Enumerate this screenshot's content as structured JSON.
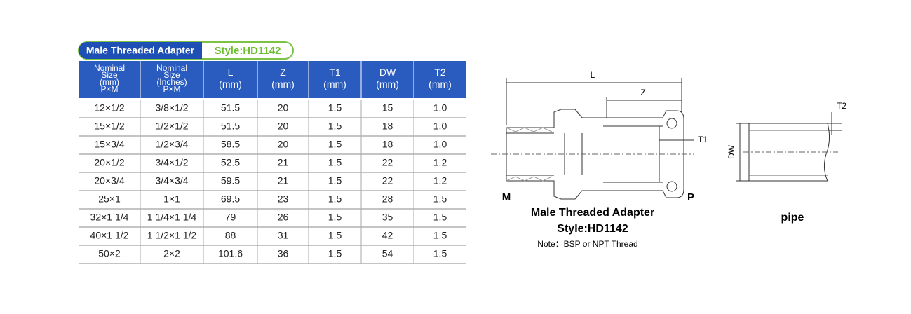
{
  "header": {
    "title": "Male Threaded Adapter",
    "style": "Style:HD1142"
  },
  "table": {
    "columns": [
      [
        "Nominal",
        "Size",
        "(mm)",
        "P×M"
      ],
      [
        "Nominal",
        "Size",
        "(Inches)",
        "P×M"
      ],
      [
        "L",
        "(mm)"
      ],
      [
        "Z",
        "(mm)"
      ],
      [
        "T1",
        "(mm)"
      ],
      [
        "DW",
        "(mm)"
      ],
      [
        "T2",
        "(mm)"
      ]
    ],
    "rows": [
      [
        "12×1/2",
        "3/8×1/2",
        "51.5",
        "20",
        "1.5",
        "15",
        "1.0"
      ],
      [
        "15×1/2",
        "1/2×1/2",
        "51.5",
        "20",
        "1.5",
        "18",
        "1.0"
      ],
      [
        "15×3/4",
        "1/2×3/4",
        "58.5",
        "20",
        "1.5",
        "18",
        "1.0"
      ],
      [
        "20×1/2",
        "3/4×1/2",
        "52.5",
        "21",
        "1.5",
        "22",
        "1.2"
      ],
      [
        "20×3/4",
        "3/4×3/4",
        "59.5",
        "21",
        "1.5",
        "22",
        "1.2"
      ],
      [
        "25×1",
        "1×1",
        "69.5",
        "23",
        "1.5",
        "28",
        "1.5"
      ],
      [
        "32×1 1/4",
        "1 1/4×1 1/4",
        "79",
        "26",
        "1.5",
        "35",
        "1.5"
      ],
      [
        "40×1 1/2",
        "1 1/2×1 1/2",
        "88",
        "31",
        "1.5",
        "42",
        "1.5"
      ],
      [
        "50×2",
        "2×2",
        "101.6",
        "36",
        "1.5",
        "54",
        "1.5"
      ]
    ]
  },
  "diagram": {
    "L": "L",
    "Z": "Z",
    "T1": "T1",
    "M": "M",
    "P": "P",
    "caption": "Male Threaded Adapter",
    "style": "Style:HD1142",
    "note": "Note：BSP or NPT Thread"
  },
  "pipe": {
    "T2": "T2",
    "DW": "DW",
    "caption": "pipe"
  }
}
